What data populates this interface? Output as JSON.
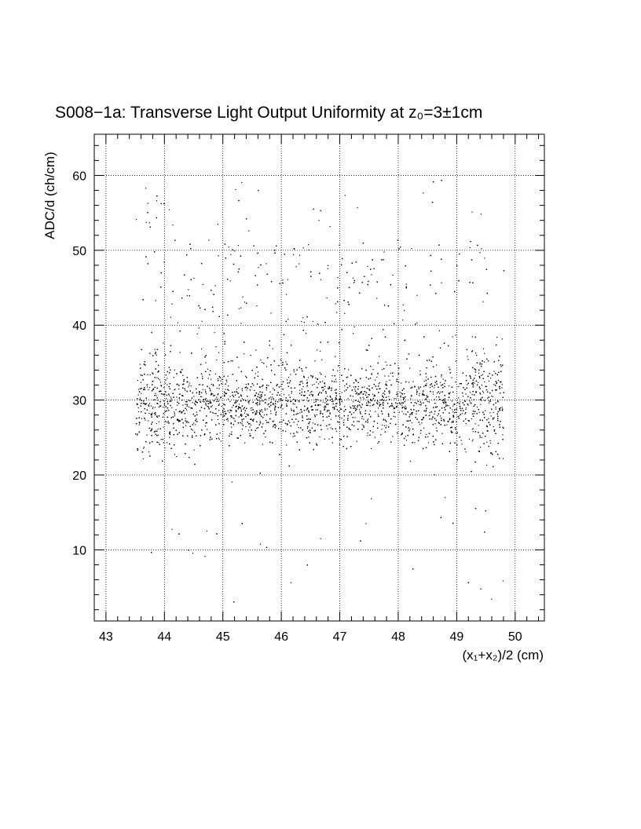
{
  "chart_data": {
    "type": "scatter",
    "title": "S008−1a: Transverse Light Output Uniformity at z₀=3±1cm",
    "xlabel": "(x₁+x₂)/2 (cm)",
    "ylabel": "ADC/d (ch/cm)",
    "xlim": [
      42.8,
      50.5
    ],
    "ylim": [
      0.5,
      65.5
    ],
    "x_ticks": [
      43,
      44,
      45,
      46,
      47,
      48,
      49,
      50
    ],
    "y_ticks": [
      10,
      20,
      30,
      40,
      50,
      60
    ],
    "grid": true,
    "marker_color": "#000000",
    "point_count": 6500,
    "distribution": {
      "x_range": [
        43.5,
        49.8
      ],
      "y_core_mean": 29.5,
      "y_core_spread": 4.5,
      "y_tail_range": [
        3,
        60
      ]
    }
  }
}
